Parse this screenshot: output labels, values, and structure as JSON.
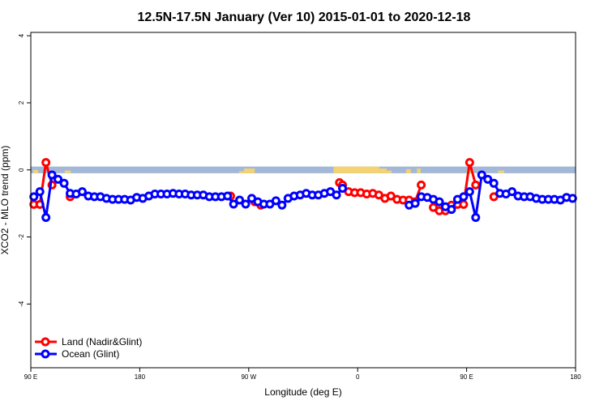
{
  "chart_data": {
    "type": "line",
    "title": "12.5N-17.5N January (Ver 10)   2015-01-01 to 2020-12-18",
    "xlabel": "Longitude (deg E)",
    "ylabel": "XCO2 - MLO trend (ppm)",
    "xlim": [
      90,
      540
    ],
    "ylim": [
      -5.9,
      4.1
    ],
    "x_ticks": [
      {
        "value": 90,
        "label": "90 E"
      },
      {
        "value": 180,
        "label": "180"
      },
      {
        "value": 270,
        "label": "90 W"
      },
      {
        "value": 360,
        "label": "0"
      },
      {
        "value": 450,
        "label": "90 E"
      },
      {
        "value": 540,
        "label": "180"
      }
    ],
    "y_ticks": [
      {
        "value": -4,
        "label": "-4"
      },
      {
        "value": -2,
        "label": "-2"
      },
      {
        "value": 0,
        "label": "0"
      },
      {
        "value": 2,
        "label": "2"
      },
      {
        "value": 4,
        "label": "4"
      }
    ],
    "grid": false,
    "legend_position": "bottom-left",
    "series": [
      {
        "name": "Land (Nadir&Glint)",
        "color": "#ff0000",
        "points": [
          [
            92.5,
            -1.03
          ],
          [
            97.5,
            -1.03
          ],
          [
            102.5,
            0.22
          ],
          [
            107.5,
            -0.45
          ],
          [
            122.5,
            -0.8
          ],
          [
            255,
            -0.78
          ],
          [
            275,
            -0.95
          ],
          [
            280,
            -1.05
          ],
          [
            345,
            -0.38
          ],
          [
            347.5,
            -0.45
          ],
          [
            352.5,
            -0.65
          ],
          [
            357.5,
            -0.68
          ],
          [
            362.5,
            -0.68
          ],
          [
            367.5,
            -0.72
          ],
          [
            372.5,
            -0.7
          ],
          [
            377.5,
            -0.75
          ],
          [
            382.5,
            -0.85
          ],
          [
            387.5,
            -0.78
          ],
          [
            392.5,
            -0.88
          ],
          [
            397.5,
            -0.9
          ],
          [
            402.5,
            -0.9
          ],
          [
            407.5,
            -0.95
          ],
          [
            412.5,
            -0.45
          ],
          [
            422.5,
            -1.12
          ],
          [
            427.5,
            -1.22
          ],
          [
            432.5,
            -1.22
          ],
          [
            437.5,
            -1.05
          ],
          [
            442.5,
            -1.03
          ],
          [
            447.5,
            -1.03
          ],
          [
            452.5,
            0.22
          ],
          [
            457.5,
            -0.45
          ],
          [
            472.5,
            -0.8
          ]
        ]
      },
      {
        "name": "Ocean (Glint)",
        "color": "#0000ff",
        "points": [
          [
            92.5,
            -0.8
          ],
          [
            97.5,
            -0.65
          ],
          [
            102.5,
            -1.42
          ],
          [
            107.5,
            -0.15
          ],
          [
            112.5,
            -0.28
          ],
          [
            117.5,
            -0.4
          ],
          [
            122.5,
            -0.7
          ],
          [
            127.5,
            -0.72
          ],
          [
            132.5,
            -0.65
          ],
          [
            137.5,
            -0.78
          ],
          [
            142.5,
            -0.8
          ],
          [
            147.5,
            -0.8
          ],
          [
            152.5,
            -0.85
          ],
          [
            157.5,
            -0.88
          ],
          [
            162.5,
            -0.88
          ],
          [
            167.5,
            -0.88
          ],
          [
            172.5,
            -0.9
          ],
          [
            177.5,
            -0.82
          ],
          [
            182.5,
            -0.85
          ],
          [
            187.5,
            -0.78
          ],
          [
            192.5,
            -0.72
          ],
          [
            197.5,
            -0.72
          ],
          [
            202.5,
            -0.72
          ],
          [
            207.5,
            -0.7
          ],
          [
            212.5,
            -0.72
          ],
          [
            217.5,
            -0.72
          ],
          [
            222.5,
            -0.75
          ],
          [
            227.5,
            -0.75
          ],
          [
            232.5,
            -0.75
          ],
          [
            237.5,
            -0.8
          ],
          [
            242.5,
            -0.8
          ],
          [
            247.5,
            -0.8
          ],
          [
            252.5,
            -0.78
          ],
          [
            257.5,
            -1.02
          ],
          [
            262.5,
            -0.9
          ],
          [
            267.5,
            -1.02
          ],
          [
            272.5,
            -0.85
          ],
          [
            277.5,
            -0.95
          ],
          [
            282.5,
            -1.02
          ],
          [
            287.5,
            -1.02
          ],
          [
            292.5,
            -0.92
          ],
          [
            297.5,
            -1.05
          ],
          [
            302.5,
            -0.85
          ],
          [
            307.5,
            -0.78
          ],
          [
            312.5,
            -0.75
          ],
          [
            317.5,
            -0.7
          ],
          [
            322.5,
            -0.75
          ],
          [
            327.5,
            -0.75
          ],
          [
            332.5,
            -0.7
          ],
          [
            337.5,
            -0.65
          ],
          [
            342.5,
            -0.75
          ],
          [
            347.5,
            -0.55
          ],
          [
            402.5,
            -1.05
          ],
          [
            407.5,
            -1.0
          ],
          [
            412.5,
            -0.8
          ],
          [
            417.5,
            -0.82
          ],
          [
            422.5,
            -0.88
          ],
          [
            427.5,
            -0.95
          ],
          [
            432.5,
            -1.1
          ],
          [
            437.5,
            -1.18
          ],
          [
            442.5,
            -0.88
          ],
          [
            447.5,
            -0.8
          ],
          [
            452.5,
            -0.65
          ],
          [
            457.5,
            -1.42
          ],
          [
            462.5,
            -0.15
          ],
          [
            467.5,
            -0.28
          ],
          [
            472.5,
            -0.4
          ],
          [
            477.5,
            -0.7
          ],
          [
            482.5,
            -0.72
          ],
          [
            487.5,
            -0.65
          ],
          [
            492.5,
            -0.78
          ],
          [
            497.5,
            -0.8
          ],
          [
            502.5,
            -0.8
          ],
          [
            507.5,
            -0.85
          ],
          [
            512.5,
            -0.88
          ],
          [
            517.5,
            -0.88
          ],
          [
            522.5,
            -0.88
          ],
          [
            527.5,
            -0.9
          ],
          [
            532.5,
            -0.82
          ],
          [
            537.5,
            -0.85
          ]
        ]
      }
    ],
    "background_band": {
      "y_range": [
        -0.1,
        0.1
      ],
      "ocean_color": "#a3b8d8",
      "land_color": "#f2d272",
      "land_spans": [
        [
          92,
          96,
          0.5
        ],
        [
          118,
          123,
          0.4
        ],
        [
          262,
          266,
          0.3
        ],
        [
          266,
          275,
          0.7
        ],
        [
          340,
          378,
          1.0
        ],
        [
          378,
          384,
          0.7
        ],
        [
          384,
          388,
          0.4
        ],
        [
          400,
          404,
          0.6
        ],
        [
          409,
          412,
          0.7
        ],
        [
          450,
          456,
          0.45
        ],
        [
          476,
          481,
          0.4
        ]
      ]
    }
  }
}
